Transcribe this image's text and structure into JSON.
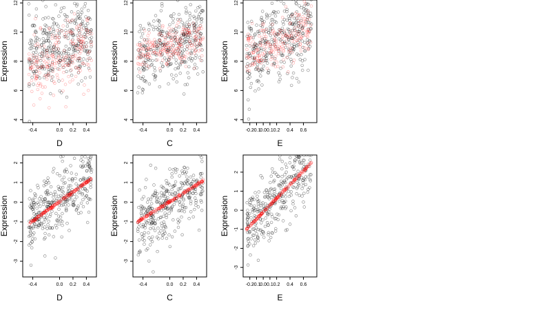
{
  "chart_data": [
    {
      "type": "scatter",
      "panel": "top-left",
      "xlabel": "D",
      "ylabel": "Expression",
      "xlim": [
        -0.55,
        0.55
      ],
      "ylim": [
        3.8,
        12.2
      ],
      "xticks": [
        -0.4,
        0.0,
        0.2,
        0.4
      ],
      "xtick_labels": [
        "-0.4",
        "0.0",
        "0.2",
        "0.4"
      ],
      "yticks": [
        4,
        6,
        8,
        10,
        12
      ],
      "ytick_labels": [
        "4",
        "6",
        "8",
        "10",
        "12"
      ],
      "series": [
        {
          "color": "#000000",
          "n_points": 340,
          "x_range": [
            -0.46,
            0.48
          ],
          "y_center": [
            8.4,
            9.9
          ],
          "spread": 1.3
        },
        {
          "color": "#ff0000",
          "n_points": 220,
          "x_range": [
            -0.46,
            0.48
          ],
          "y_center": [
            7.0,
            9.2
          ],
          "spread": 1.2
        }
      ]
    },
    {
      "type": "scatter",
      "panel": "top-middle",
      "xlabel": "C",
      "ylabel": "Expression",
      "xlim": [
        -0.55,
        0.55
      ],
      "ylim": [
        3.8,
        12.2
      ],
      "xticks": [
        -0.4,
        0.0,
        0.2,
        0.4
      ],
      "xtick_labels": [
        "-0.4",
        "0.0",
        "0.2",
        "0.4"
      ],
      "yticks": [
        4,
        6,
        8,
        10,
        12
      ],
      "ytick_labels": [
        "4",
        "6",
        "8",
        "10",
        "12"
      ],
      "series": [
        {
          "color": "#000000",
          "n_points": 340,
          "x_range": [
            -0.48,
            0.5
          ],
          "y_center": [
            8.2,
            10.0
          ],
          "spread": 1.3
        },
        {
          "color": "#ff0000",
          "n_points": 220,
          "x_range": [
            -0.48,
            0.5
          ],
          "y_center": [
            8.5,
            9.5
          ],
          "spread": 0.7
        }
      ]
    },
    {
      "type": "scatter",
      "panel": "top-right",
      "xlabel": "E",
      "ylabel": "Expression",
      "xlim": [
        -0.3,
        0.8
      ],
      "ylim": [
        3.8,
        12.2
      ],
      "xticks": [
        -0.2,
        -0.1,
        0.0,
        0.1,
        0.2,
        0.4,
        0.6
      ],
      "xtick_labels": [
        "-0.2",
        "-0.1",
        "0.0",
        "0.1",
        "0.2",
        "0.4",
        "0.6"
      ],
      "yticks": [
        4,
        6,
        8,
        10,
        12
      ],
      "ytick_labels": [
        "4",
        "6",
        "8",
        "10",
        "12"
      ],
      "series": [
        {
          "color": "#000000",
          "n_points": 340,
          "x_range": [
            -0.25,
            0.72
          ],
          "y_center": [
            8.3,
            10.4
          ],
          "spread": 1.3
        },
        {
          "color": "#ff0000",
          "n_points": 220,
          "x_range": [
            -0.25,
            0.72
          ],
          "y_center": [
            8.6,
            10.2
          ],
          "spread": 0.8
        }
      ]
    },
    {
      "type": "scatter",
      "panel": "bottom-left",
      "xlabel": "D",
      "ylabel": "Expression",
      "xlim": [
        -0.55,
        0.55
      ],
      "ylim": [
        -3.8,
        2.4
      ],
      "xticks": [
        -0.4,
        0.0,
        0.2,
        0.4
      ],
      "xtick_labels": [
        "-0.4",
        "0.0",
        "0.2",
        "0.4"
      ],
      "yticks": [
        -3,
        -2,
        -1,
        0,
        1,
        2
      ],
      "ytick_labels": [
        "-3",
        "-2",
        "-1",
        "0",
        "1",
        "2"
      ],
      "series": [
        {
          "color": "#000000",
          "n_points": 340,
          "x_range": [
            -0.46,
            0.48
          ],
          "y_center": [
            -1.1,
            1.2
          ],
          "spread": 0.9
        },
        {
          "color": "#ff0000",
          "n_points": 220,
          "x_range": [
            -0.46,
            0.48
          ],
          "y_center": [
            -1.1,
            1.2
          ],
          "spread": 0.03
        }
      ]
    },
    {
      "type": "scatter",
      "panel": "bottom-middle",
      "xlabel": "C",
      "ylabel": "Expression",
      "xlim": [
        -0.55,
        0.55
      ],
      "ylim": [
        -3.8,
        2.4
      ],
      "xticks": [
        -0.4,
        0.0,
        0.2,
        0.4
      ],
      "xtick_labels": [
        "-0.4",
        "0.0",
        "0.2",
        "0.4"
      ],
      "yticks": [
        -3,
        -2,
        -1,
        0,
        1,
        2
      ],
      "ytick_labels": [
        "-3",
        "-2",
        "-1",
        "0",
        "1",
        "2"
      ],
      "series": [
        {
          "color": "#000000",
          "n_points": 340,
          "x_range": [
            -0.48,
            0.5
          ],
          "y_center": [
            -1.0,
            1.1
          ],
          "spread": 0.9
        },
        {
          "color": "#ff0000",
          "n_points": 220,
          "x_range": [
            -0.48,
            0.5
          ],
          "y_center": [
            -1.0,
            1.1
          ],
          "spread": 0.03
        }
      ]
    },
    {
      "type": "scatter",
      "panel": "bottom-right",
      "xlabel": "E",
      "ylabel": "Expression",
      "xlim": [
        -0.3,
        0.8
      ],
      "ylim": [
        -3.5,
        2.9
      ],
      "xticks": [
        -0.2,
        -0.1,
        0.0,
        0.1,
        0.2,
        0.4,
        0.6
      ],
      "xtick_labels": [
        "-0.2",
        "-0.1",
        "0.0",
        "0.1",
        "0.2",
        "0.4",
        "0.6"
      ],
      "yticks": [
        -3,
        -2,
        -1,
        0,
        1,
        2
      ],
      "ytick_labels": [
        "-3",
        "-2",
        "-1",
        "0",
        "1",
        "2"
      ],
      "series": [
        {
          "color": "#000000",
          "n_points": 340,
          "x_range": [
            -0.25,
            0.72
          ],
          "y_center": [
            -1.0,
            2.5
          ],
          "spread": 0.9
        },
        {
          "color": "#ff0000",
          "n_points": 220,
          "x_range": [
            -0.25,
            0.72
          ],
          "y_center": [
            -1.0,
            2.5
          ],
          "spread": 0.03
        }
      ]
    }
  ]
}
